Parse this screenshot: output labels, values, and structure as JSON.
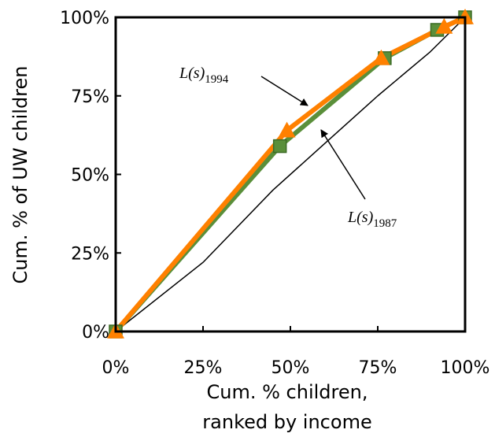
{
  "chart_data": {
    "type": "line",
    "title": "",
    "xlabel": [
      "Cum. % children,",
      "ranked by income"
    ],
    "ylabel": "Cum. % of UW children",
    "xlim": [
      0,
      100
    ],
    "ylim": [
      0,
      100
    ],
    "x_ticks": [
      "0%",
      "25%",
      "50%",
      "75%",
      "100%"
    ],
    "y_ticks": [
      "0%",
      "25%",
      "50%",
      "75%",
      "100%"
    ],
    "grid": false,
    "legend": "none",
    "series": [
      {
        "color": "#5a8f3a",
        "marker": "square",
        "points": [
          [
            0,
            0
          ],
          [
            47,
            59
          ],
          [
            77,
            87
          ],
          [
            92,
            96
          ],
          [
            100,
            100
          ]
        ]
      },
      {
        "color": "#ff8000",
        "marker": "triangle",
        "points": [
          [
            0,
            0
          ],
          [
            49,
            64
          ],
          [
            76,
            87
          ],
          [
            94,
            97
          ],
          [
            100,
            100
          ]
        ]
      },
      {
        "color": "#000000",
        "marker": "none",
        "points": [
          [
            0,
            0
          ],
          [
            25,
            22
          ],
          [
            45,
            45
          ],
          [
            60,
            60
          ],
          [
            75,
            75
          ],
          [
            90,
            89
          ],
          [
            100,
            100
          ]
        ]
      }
    ],
    "annotations": [
      {
        "label_main": "L(s)",
        "label_sub": "1994"
      },
      {
        "label_main": "L(s)",
        "label_sub": "1987"
      }
    ]
  }
}
